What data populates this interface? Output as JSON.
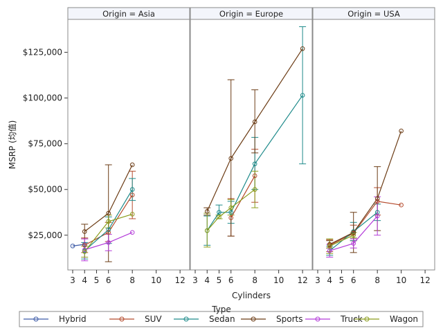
{
  "chart_data": {
    "type": "line",
    "xlabel": "Cylinders",
    "ylabel": "MSRP (均值)",
    "x_ticks": [
      3,
      4,
      5,
      6,
      8,
      10,
      12
    ],
    "x_tick_labels": [
      "3",
      "4",
      "5",
      "6",
      "8",
      "10",
      "12"
    ],
    "xlim": [
      3,
      12.4
    ],
    "y_ticks": [
      25000,
      50000,
      75000,
      100000,
      125000
    ],
    "y_tick_labels": [
      "$25,000",
      "$50,000",
      "$75,000",
      "$100,000",
      "$125,000"
    ],
    "ylim": [
      6000,
      143000
    ],
    "grid": false,
    "legend": {
      "title": "Type",
      "position": "bottom"
    },
    "series_types": [
      {
        "name": "Hybrid",
        "color": "#3c5aa6"
      },
      {
        "name": "SUV",
        "color": "#b44a2c"
      },
      {
        "name": "Sedan",
        "color": "#1d8a8a"
      },
      {
        "name": "Sports",
        "color": "#6b3b14"
      },
      {
        "name": "Truck",
        "color": "#b33bd9"
      },
      {
        "name": "Wagon",
        "color": "#8a9c1a"
      }
    ],
    "panels": [
      {
        "title": "Origin = Asia",
        "series": [
          {
            "name": "Hybrid",
            "points": [
              {
                "x": 3,
                "y": 19100
              },
              {
                "x": 4,
                "y": 20000
              }
            ]
          },
          {
            "name": "SUV",
            "points": [
              {
                "x": 4,
                "y": 19500,
                "lo": 15500,
                "hi": 23500
              },
              {
                "x": 6,
                "y": 26500,
                "lo": 21500,
                "hi": 32000
              },
              {
                "x": 8,
                "y": 47000,
                "lo": 34000,
                "hi": 60000
              }
            ]
          },
          {
            "name": "Sedan",
            "points": [
              {
                "x": 4,
                "y": 16500,
                "lo": 12000,
                "hi": 21000
              },
              {
                "x": 6,
                "y": 28000,
                "lo": 20500,
                "hi": 35000
              },
              {
                "x": 8,
                "y": 50000,
                "lo": 44000,
                "hi": 56000
              }
            ]
          },
          {
            "name": "Sports",
            "points": [
              {
                "x": 4,
                "y": 27000,
                "lo": 23000,
                "hi": 31000
              },
              {
                "x": 6,
                "y": 37000,
                "lo": 10500,
                "hi": 63500
              },
              {
                "x": 8,
                "y": 63500
              }
            ]
          },
          {
            "name": "Truck",
            "points": [
              {
                "x": 4,
                "y": 17000,
                "lo": 11000,
                "hi": 23000
              },
              {
                "x": 6,
                "y": 21000,
                "lo": 16500,
                "hi": 25500
              },
              {
                "x": 8,
                "y": 26500
              }
            ]
          },
          {
            "name": "Wagon",
            "points": [
              {
                "x": 4,
                "y": 16000,
                "lo": 13000,
                "hi": 19000
              },
              {
                "x": 6,
                "y": 32500,
                "lo": 29000,
                "hi": 36000
              },
              {
                "x": 8,
                "y": 36500
              }
            ]
          }
        ]
      },
      {
        "title": "Origin = Europe",
        "series": [
          {
            "name": "SUV",
            "points": [
              {
                "x": 6,
                "y": 34500,
                "lo": 24500,
                "hi": 45000
              },
              {
                "x": 8,
                "y": 57500,
                "lo": 43000,
                "hi": 72000
              }
            ]
          },
          {
            "name": "Sedan",
            "points": [
              {
                "x": 4,
                "y": 27500,
                "lo": 19500,
                "hi": 35500
              },
              {
                "x": 5,
                "y": 37500,
                "lo": 34000,
                "hi": 41500
              },
              {
                "x": 6,
                "y": 37500,
                "lo": 31500,
                "hi": 43500
              },
              {
                "x": 8,
                "y": 64000,
                "lo": 50000,
                "hi": 78500
              },
              {
                "x": 12,
                "y": 101500,
                "lo": 64000,
                "hi": 139000
              }
            ]
          },
          {
            "name": "Sports",
            "points": [
              {
                "x": 4,
                "y": 38000,
                "lo": 36000,
                "hi": 40000
              },
              {
                "x": 6,
                "y": 67000,
                "lo": 24500,
                "hi": 110000
              },
              {
                "x": 8,
                "y": 87000,
                "lo": 70000,
                "hi": 104500
              },
              {
                "x": 12,
                "y": 127000
              }
            ]
          },
          {
            "name": "Wagon",
            "points": [
              {
                "x": 4,
                "y": 27500,
                "lo": 18500,
                "hi": 37000
              },
              {
                "x": 5,
                "y": 35000,
                "lo": 34000,
                "hi": 36000
              },
              {
                "x": 6,
                "y": 40000,
                "lo": 36000,
                "hi": 44500
              },
              {
                "x": 8,
                "y": 50000,
                "lo": 40000,
                "hi": 60000
              }
            ]
          }
        ]
      },
      {
        "title": "Origin = USA",
        "series": [
          {
            "name": "SUV",
            "points": [
              {
                "x": 4,
                "y": 19500,
                "lo": 16000,
                "hi": 22500
              },
              {
                "x": 6,
                "y": 26000,
                "lo": 22000,
                "hi": 30500
              },
              {
                "x": 8,
                "y": 43500,
                "lo": 36000,
                "hi": 51000
              },
              {
                "x": 10,
                "y": 41500
              }
            ]
          },
          {
            "name": "Sedan",
            "points": [
              {
                "x": 4,
                "y": 16500,
                "lo": 14000,
                "hi": 19000
              },
              {
                "x": 6,
                "y": 27000,
                "lo": 22000,
                "hi": 32000
              },
              {
                "x": 8,
                "y": 37500,
                "lo": 33000,
                "hi": 42000
              }
            ]
          },
          {
            "name": "Sports",
            "points": [
              {
                "x": 4,
                "y": 20000,
                "lo": 18000,
                "hi": 22000
              },
              {
                "x": 6,
                "y": 26500,
                "lo": 15500,
                "hi": 37500
              },
              {
                "x": 8,
                "y": 45000,
                "lo": 27500,
                "hi": 62500
              },
              {
                "x": 10,
                "y": 82000
              }
            ]
          },
          {
            "name": "Truck",
            "points": [
              {
                "x": 4,
                "y": 16500,
                "lo": 13000,
                "hi": 20000
              },
              {
                "x": 6,
                "y": 20500,
                "lo": 18000,
                "hi": 23000
              },
              {
                "x": 8,
                "y": 35500,
                "lo": 25000,
                "hi": 46000
              }
            ]
          },
          {
            "name": "Wagon",
            "points": [
              {
                "x": 4,
                "y": 19000,
                "lo": 15000,
                "hi": 23000
              },
              {
                "x": 6,
                "y": 25000,
                "lo": 23500,
                "hi": 26500
              }
            ]
          }
        ]
      }
    ]
  }
}
